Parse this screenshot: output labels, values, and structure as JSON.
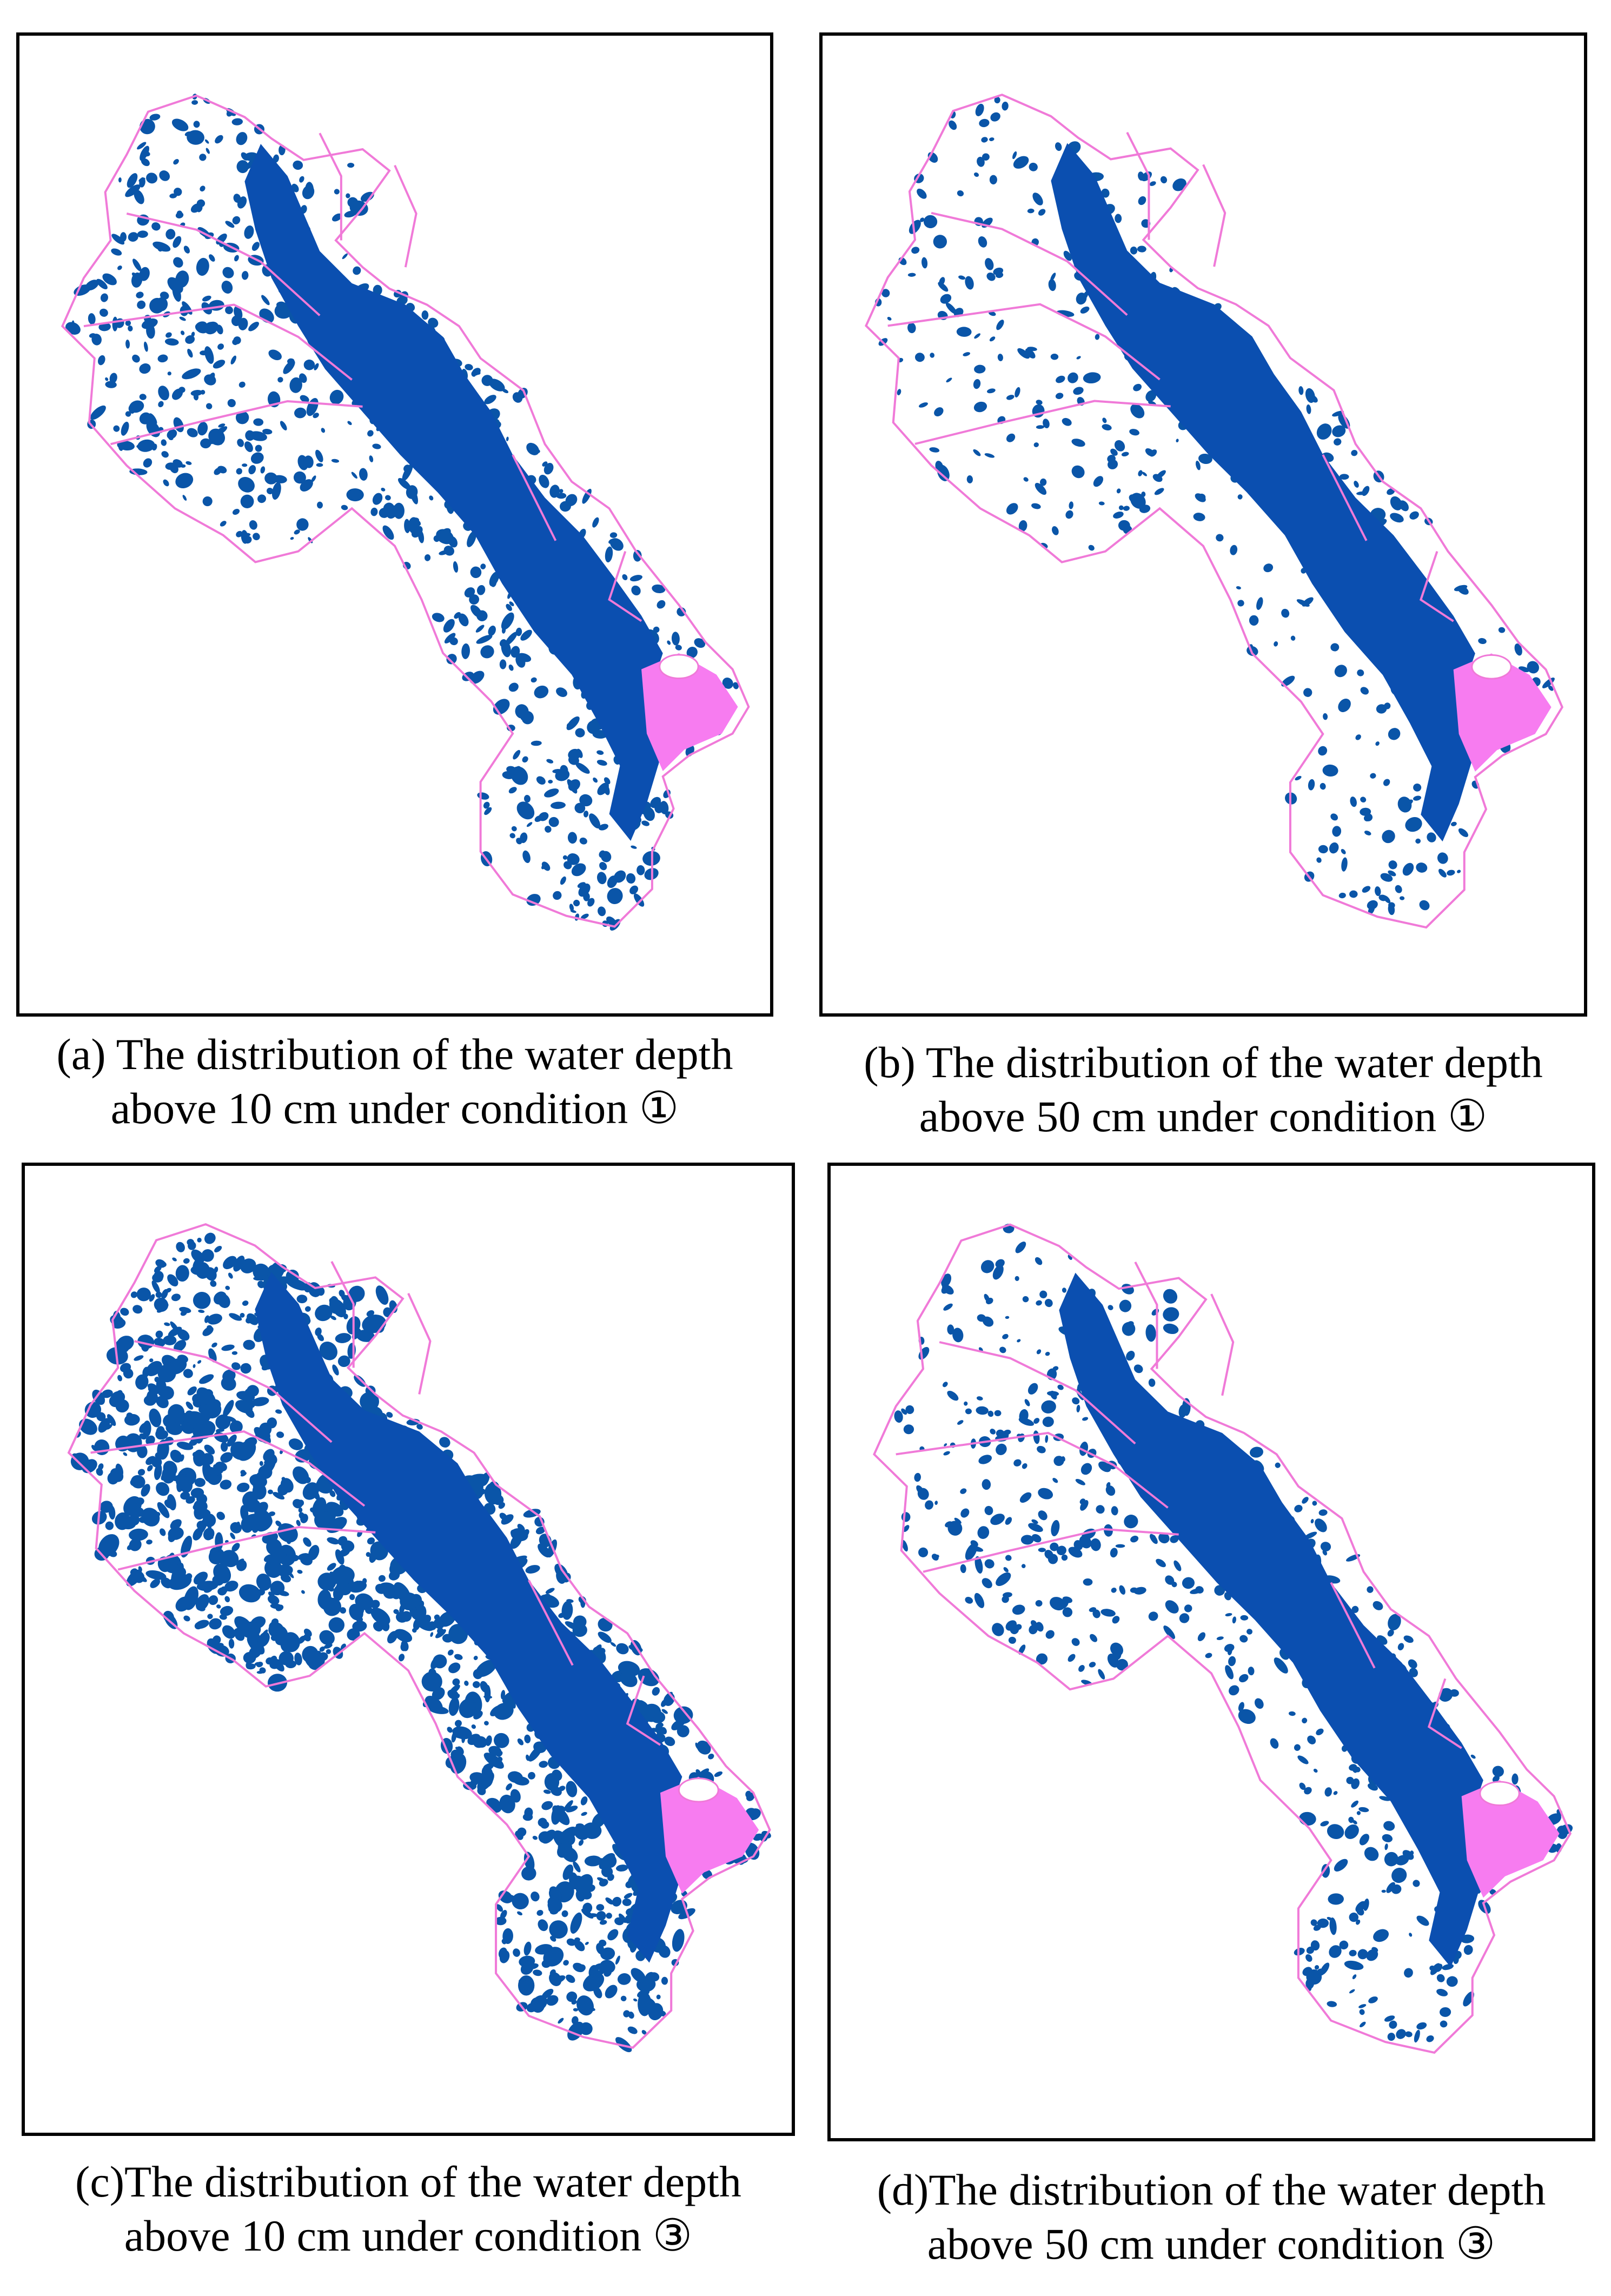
{
  "colors": {
    "water": "#0a55a8",
    "main_channel": "#0b4fb0",
    "lake": "#f77cf0",
    "boundary": "#f07ad8",
    "frame": "#000000"
  },
  "panels": [
    {
      "id": "a",
      "caption_line1": "(a) The distribution of the water depth",
      "caption_line2": "above 10 cm under condition ①",
      "water_density": 0.55
    },
    {
      "id": "b",
      "caption_line1": "(b) The distribution of the water depth",
      "caption_line2": "above 50 cm under condition ①",
      "water_density": 0.3
    },
    {
      "id": "c",
      "caption_line1": "(c)The distribution of the water depth",
      "caption_line2": "above 10 cm under condition ③",
      "water_density": 1.0
    },
    {
      "id": "d",
      "caption_line1": "(d)The distribution of the water depth",
      "caption_line2": "above 50 cm under condition ③",
      "water_density": 0.4
    }
  ]
}
